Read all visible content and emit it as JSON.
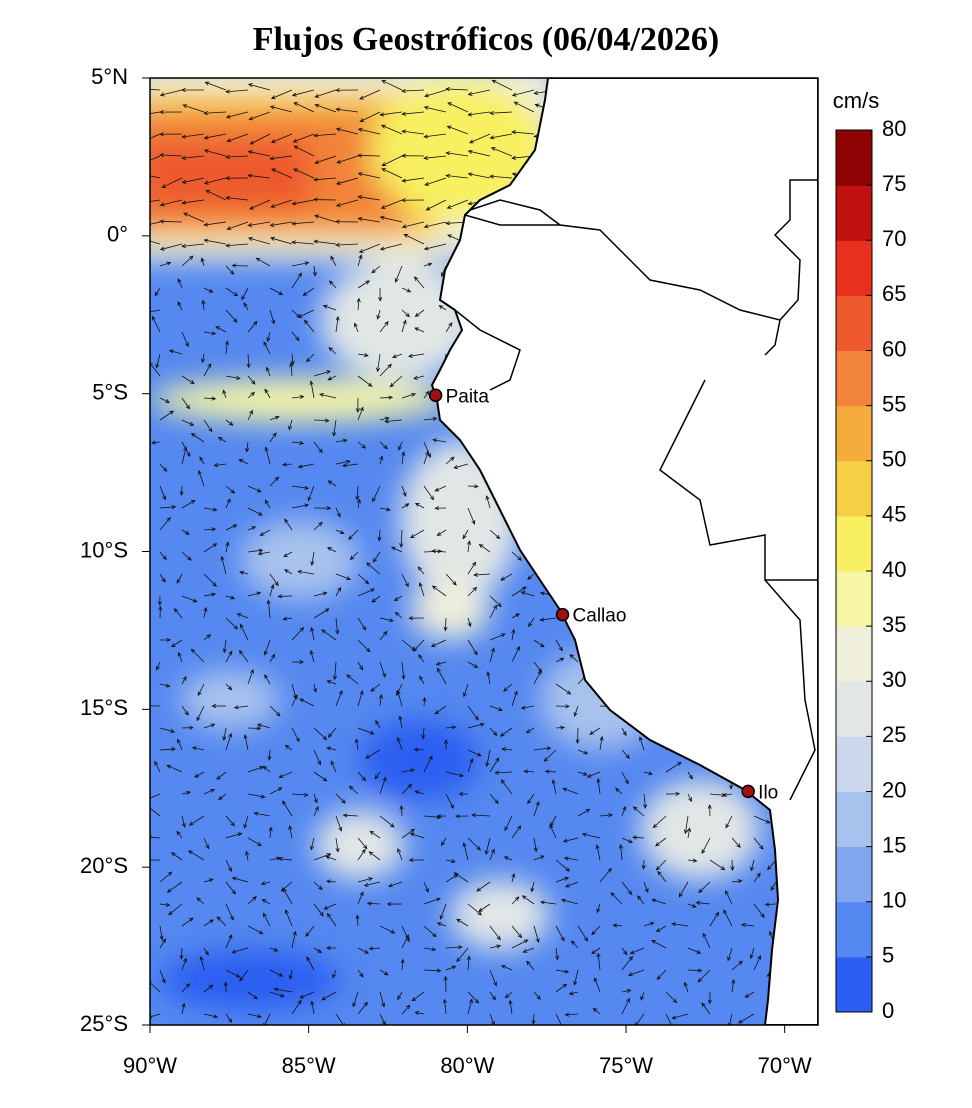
{
  "title": "Flujos Geostróficos (06/04/2026)",
  "map": {
    "lon_range": [
      -90,
      -68.95
    ],
    "lat_range": [
      -25,
      5
    ],
    "lon_ticks": [
      {
        "value": -90,
        "label": "90°W"
      },
      {
        "value": -85,
        "label": "85°W"
      },
      {
        "value": -80,
        "label": "80°W"
      },
      {
        "value": -75,
        "label": "75°W"
      },
      {
        "value": -70,
        "label": "70°W"
      }
    ],
    "lat_ticks": [
      {
        "value": 5,
        "label": "5°N"
      },
      {
        "value": 0,
        "label": "0°"
      },
      {
        "value": -5,
        "label": "5°S"
      },
      {
        "value": -10,
        "label": "10°S"
      },
      {
        "value": -15,
        "label": "15°S"
      },
      {
        "value": -20,
        "label": "20°S"
      },
      {
        "value": -25,
        "label": "25°S"
      }
    ],
    "cities": [
      {
        "name": "Paita",
        "lon": -81.0,
        "lat": -5.05
      },
      {
        "name": "Callao",
        "lon": -77.0,
        "lat": -12.0
      },
      {
        "name": "Ilo",
        "lon": -71.15,
        "lat": -17.6
      }
    ]
  },
  "colorbar": {
    "label": "cm/s",
    "range": [
      0,
      80
    ],
    "ticks": [
      0,
      5,
      10,
      15,
      20,
      25,
      30,
      35,
      40,
      45,
      50,
      55,
      60,
      65,
      70,
      75,
      80
    ],
    "colors": [
      "#2b5ef2",
      "#5588f0",
      "#7fa6ee",
      "#a8c2ee",
      "#cbd8ec",
      "#e2e7e6",
      "#eeeedb",
      "#f6f5a6",
      "#f8f060",
      "#f7cf45",
      "#f5ac3c",
      "#f2833a",
      "#ee5a2e",
      "#e8301e",
      "#c01010",
      "#8e0404"
    ]
  }
}
